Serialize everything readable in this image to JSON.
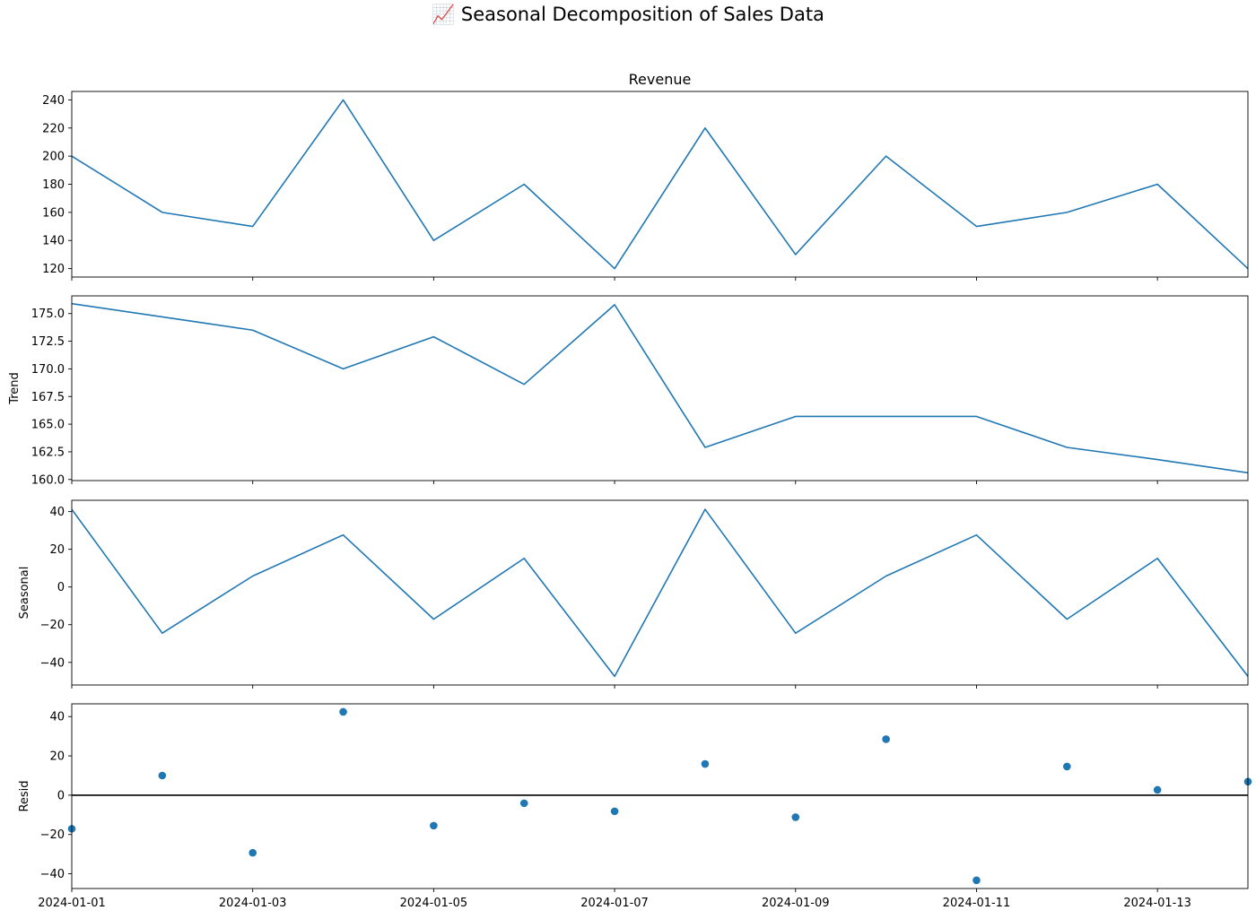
{
  "suptitle": "📈 Seasonal Decomposition of Sales Data",
  "colors": {
    "line": "#1f77b4",
    "marker": "#1f77b4",
    "zero_line": "#000000",
    "axes": "#000000"
  },
  "chart_data": [
    {
      "type": "line",
      "title": "Revenue",
      "ylabel": "",
      "x": [
        "2024-01-01",
        "2024-01-02",
        "2024-01-03",
        "2024-01-04",
        "2024-01-05",
        "2024-01-06",
        "2024-01-07",
        "2024-01-08",
        "2024-01-09",
        "2024-01-10",
        "2024-01-11",
        "2024-01-12",
        "2024-01-13",
        "2024-01-14"
      ],
      "values": [
        200,
        160,
        150,
        240,
        140,
        180,
        120,
        220,
        130,
        200,
        150,
        160,
        180,
        120
      ],
      "ylim": [
        114,
        246
      ],
      "yticks": [
        120,
        140,
        160,
        180,
        200,
        220,
        240
      ],
      "ytick_labels": [
        "120",
        "140",
        "160",
        "180",
        "200",
        "220",
        "240"
      ],
      "show_xtick_labels": false
    },
    {
      "type": "line",
      "title": "",
      "ylabel": "Trend",
      "x": [
        "2024-01-01",
        "2024-01-02",
        "2024-01-03",
        "2024-01-04",
        "2024-01-05",
        "2024-01-06",
        "2024-01-07",
        "2024-01-08",
        "2024-01-09",
        "2024-01-10",
        "2024-01-11",
        "2024-01-12",
        "2024-01-13",
        "2024-01-14"
      ],
      "values": [
        175.9,
        174.7,
        173.5,
        170.0,
        172.9,
        168.6,
        175.8,
        162.9,
        165.7,
        165.7,
        165.7,
        162.9,
        161.8,
        160.6
      ],
      "ylim": [
        159.9,
        176.6
      ],
      "yticks": [
        160.0,
        162.5,
        165.0,
        167.5,
        170.0,
        172.5,
        175.0
      ],
      "ytick_labels": [
        "160.0",
        "162.5",
        "165.0",
        "167.5",
        "170.0",
        "172.5",
        "175.0"
      ],
      "show_xtick_labels": false
    },
    {
      "type": "line",
      "title": "",
      "ylabel": "Seasonal",
      "x": [
        "2024-01-01",
        "2024-01-02",
        "2024-01-03",
        "2024-01-04",
        "2024-01-05",
        "2024-01-06",
        "2024-01-07",
        "2024-01-08",
        "2024-01-09",
        "2024-01-10",
        "2024-01-11",
        "2024-01-12",
        "2024-01-13",
        "2024-01-14"
      ],
      "values": [
        41.2,
        -24.5,
        5.8,
        27.6,
        -17.1,
        15.2,
        -47.4,
        41.2,
        -24.5,
        5.8,
        27.6,
        -17.1,
        15.2,
        -47.4
      ],
      "ylim": [
        -52,
        46
      ],
      "yticks": [
        -40,
        -20,
        0,
        20,
        40
      ],
      "ytick_labels": [
        "−40",
        "−20",
        "0",
        "20",
        "40"
      ],
      "show_xtick_labels": false
    },
    {
      "type": "scatter",
      "title": "",
      "ylabel": "Resid",
      "x": [
        "2024-01-01",
        "2024-01-02",
        "2024-01-03",
        "2024-01-04",
        "2024-01-05",
        "2024-01-06",
        "2024-01-07",
        "2024-01-08",
        "2024-01-09",
        "2024-01-10",
        "2024-01-11",
        "2024-01-12",
        "2024-01-13",
        "2024-01-14"
      ],
      "values": [
        -17.1,
        10.0,
        -29.3,
        42.4,
        -15.5,
        -4.1,
        -8.2,
        15.9,
        -11.2,
        28.5,
        -43.3,
        14.6,
        2.7,
        6.9
      ],
      "ylim": [
        -47.5,
        46.5
      ],
      "yticks": [
        -40,
        -20,
        0,
        20,
        40
      ],
      "ytick_labels": [
        "−40",
        "−20",
        "0",
        "20",
        "40"
      ],
      "zero_line": true,
      "show_xtick_labels": true
    }
  ],
  "x_axis": {
    "ticks": [
      "2024-01-01",
      "2024-01-03",
      "2024-01-05",
      "2024-01-07",
      "2024-01-09",
      "2024-01-11",
      "2024-01-13"
    ],
    "range": [
      "2024-01-01",
      "2024-01-14"
    ]
  }
}
